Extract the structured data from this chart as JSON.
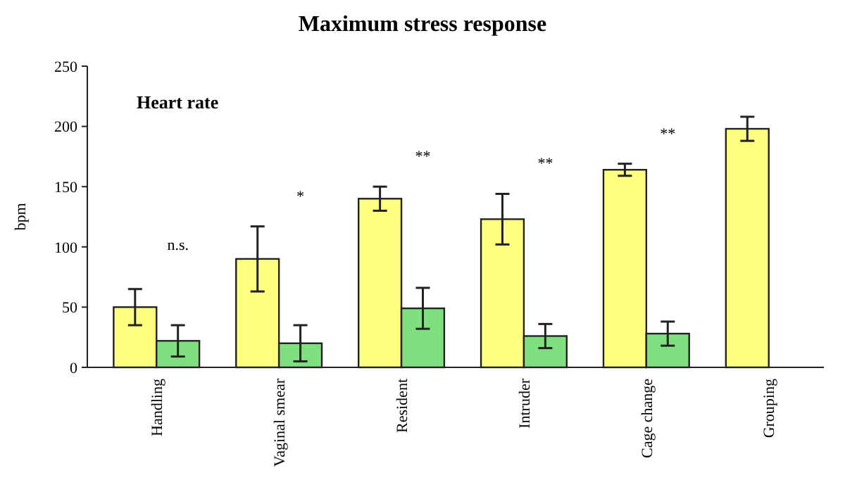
{
  "chart_data": {
    "type": "bar",
    "title": "Maximum stress response",
    "ylabel": "bpm",
    "categories": [
      "Handling",
      "Vaginal smear",
      "Resident",
      "Intruder",
      "Cage change",
      "Grouping"
    ],
    "series": [
      {
        "color": "#ffff80",
        "values": [
          50,
          90,
          140,
          123,
          164,
          198
        ],
        "errors": [
          15,
          27,
          10,
          21,
          5,
          10
        ]
      },
      {
        "color": "#80e080",
        "values": [
          22,
          20,
          49,
          26,
          28,
          null
        ],
        "errors": [
          13,
          15,
          17,
          10,
          10,
          null
        ]
      }
    ],
    "ylim": [
      0,
      250
    ],
    "yticks": [
      0,
      50,
      100,
      150,
      200,
      250
    ],
    "grid": false,
    "annotations": [
      "Heart rate",
      "n.s.",
      "*",
      "**",
      "**",
      "**"
    ]
  }
}
